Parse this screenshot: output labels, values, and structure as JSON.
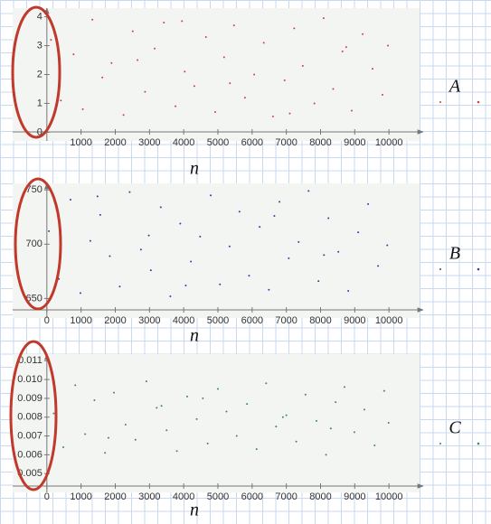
{
  "chart_data": [
    {
      "type": "scatter",
      "xlabel": "n",
      "xlim": [
        -1000,
        11000
      ],
      "ylim": [
        -0.3,
        4.3
      ],
      "xticks": [
        1000,
        2000,
        3000,
        4000,
        5000,
        6000,
        7000,
        8000,
        9000,
        10000
      ],
      "yticks": [
        0,
        1,
        2,
        3,
        4
      ],
      "series": [
        {
          "name": "A",
          "color": "#d0404a",
          "x": [
            120,
            410,
            780,
            1050,
            1330,
            1620,
            1890,
            2240,
            2510,
            2870,
            3150,
            3420,
            3760,
            4030,
            4310,
            4650,
            4920,
            5180,
            5470,
            5790,
            6060,
            6340,
            6610,
            6950,
            7230,
            7480,
            7820,
            8090,
            8370,
            8640,
            8910,
            9230,
            9520,
            9810,
            9970,
            2650,
            5350,
            7100,
            3950,
            8750
          ],
          "values": [
            3.2,
            1.1,
            2.7,
            0.8,
            3.9,
            1.9,
            2.4,
            0.6,
            3.5,
            1.4,
            2.9,
            3.8,
            0.9,
            2.1,
            1.6,
            3.3,
            0.7,
            2.6,
            3.7,
            1.2,
            2.0,
            3.1,
            0.55,
            1.8,
            3.6,
            2.3,
            1.0,
            3.95,
            1.5,
            2.8,
            0.75,
            3.4,
            2.2,
            1.3,
            3.0,
            2.5,
            1.7,
            0.65,
            3.85,
            2.95
          ]
        }
      ]
    },
    {
      "type": "scatter",
      "xlabel": "n",
      "xlim": [
        -1000,
        11000
      ],
      "ylim": [
        632,
        756
      ],
      "xticks": [
        0,
        1000,
        2000,
        3000,
        4000,
        5000,
        6000,
        7000,
        8000,
        9000,
        10000
      ],
      "yticks": [
        650,
        700,
        750
      ],
      "series": [
        {
          "name": "B",
          "color": "#3a3f9a",
          "x": [
            60,
            350,
            690,
            980,
            1270,
            1560,
            1840,
            2130,
            2420,
            2750,
            3040,
            3330,
            3610,
            3900,
            4210,
            4480,
            4790,
            5060,
            5340,
            5630,
            5910,
            6220,
            6490,
            6800,
            7070,
            7360,
            7650,
            7940,
            8230,
            8520,
            8810,
            9100,
            9390,
            9680,
            9950,
            1480,
            4060,
            6650,
            8100,
            2980
          ],
          "values": [
            712,
            668,
            741,
            655,
            703,
            727,
            689,
            661,
            748,
            695,
            676,
            734,
            652,
            719,
            684,
            707,
            745,
            663,
            698,
            730,
            671,
            716,
            658,
            739,
            687,
            702,
            749,
            666,
            724,
            693,
            657,
            711,
            737,
            680,
            699,
            744,
            662,
            726,
            690,
            708
          ]
        }
      ]
    },
    {
      "type": "scatter",
      "xlabel": "n",
      "xlim": [
        -1000,
        11000
      ],
      "ylim": [
        0.004,
        0.01135
      ],
      "xticks": [
        0,
        1000,
        2000,
        3000,
        4000,
        5000,
        6000,
        7000,
        8000,
        9000,
        10000
      ],
      "yticks": [
        0.005,
        0.006,
        0.007,
        0.008,
        0.009,
        {
          "value": 0.01,
          "label": "0.010"
        },
        0.011
      ],
      "series": [
        {
          "name": "C",
          "color": "#3f8a52",
          "x": [
            200,
            480,
            830,
            1120,
            1390,
            1700,
            1960,
            2300,
            2590,
            2910,
            3210,
            3500,
            3800,
            4100,
            4380,
            4700,
            5000,
            5250,
            5550,
            5850,
            6130,
            6410,
            6700,
            7000,
            7290,
            7560,
            7880,
            8160,
            8440,
            8700,
            8990,
            9280,
            9580,
            9860,
            9990,
            1800,
            4560,
            6900,
            8300,
            3350
          ],
          "values": [
            0.0082,
            0.0064,
            0.0097,
            0.0071,
            0.0089,
            0.0061,
            0.0093,
            0.0076,
            0.0068,
            0.0099,
            0.0085,
            0.0073,
            0.0062,
            0.0091,
            0.0079,
            0.0066,
            0.0095,
            0.0083,
            0.007,
            0.0087,
            0.0063,
            0.0098,
            0.0075,
            0.0081,
            0.0067,
            0.0092,
            0.0078,
            0.006,
            0.0088,
            0.0096,
            0.0072,
            0.0084,
            0.0065,
            0.0094,
            0.0077,
            0.0069,
            0.009,
            0.008,
            0.0074,
            0.0086
          ]
        }
      ]
    }
  ]
}
